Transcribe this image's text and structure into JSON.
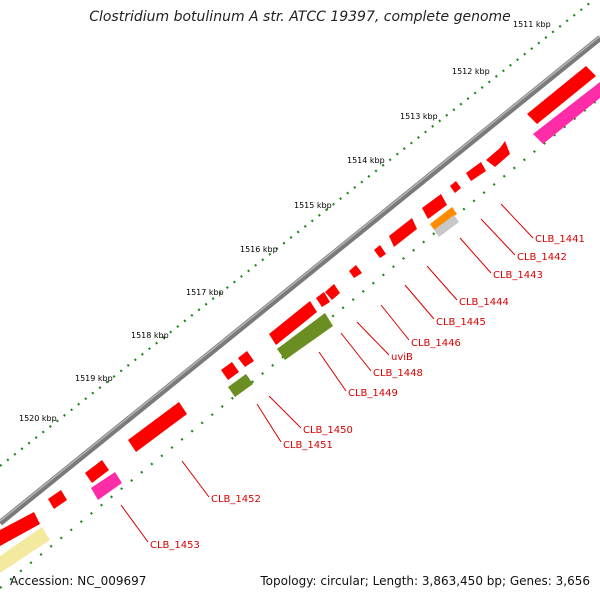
{
  "title": "Clostridium botulinum A str. ATCC 19397, complete genome",
  "accession": "Accession: NC_009697",
  "summary": "Topology: circular; Length: 3,863,450 bp; Genes: 3,656",
  "colors": {
    "gene_red": "#ff0000",
    "gene_magenta": "#ff2ca8",
    "gene_olive": "#6b8e23",
    "gene_orange": "#ff8c00",
    "gene_grey": "#c8c8c8",
    "gene_pale_yellow": "#f3eaa0",
    "backbone": "#777777",
    "tick_green": "#1a8a1a",
    "label_red": "#d90000"
  },
  "ticks": [
    {
      "label": "1511 kbp"
    },
    {
      "label": "1512 kbp"
    },
    {
      "label": "1513 kbp"
    },
    {
      "label": "1514 kbp"
    },
    {
      "label": "1515 kbp"
    },
    {
      "label": "1516 kbp"
    },
    {
      "label": "1517 kbp"
    },
    {
      "label": "1518 kbp"
    },
    {
      "label": "1519 kbp"
    },
    {
      "label": "1520 kbp"
    }
  ],
  "gene_labels": [
    "CLB_1441",
    "CLB_1442",
    "CLB_1443",
    "CLB_1444",
    "CLB_1445",
    "CLB_1446",
    "uviB",
    "CLB_1448",
    "CLB_1449",
    "CLB_1450",
    "CLB_1451",
    "CLB_1452",
    "CLB_1453"
  ]
}
